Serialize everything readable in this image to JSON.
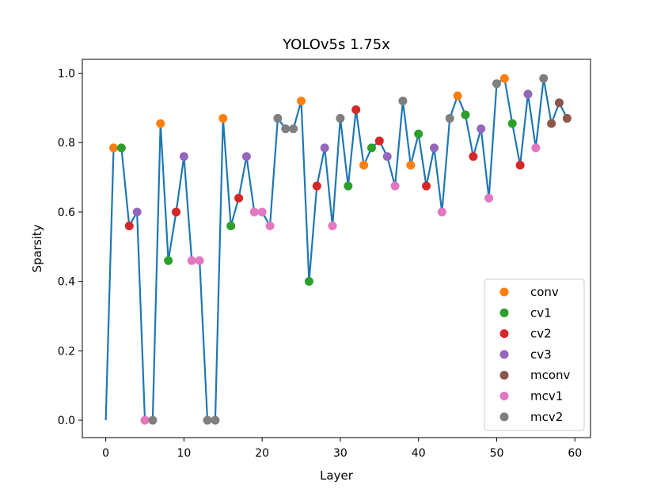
{
  "chart_data": {
    "type": "line",
    "title": "YOLOv5s 1.75x",
    "xlabel": "Layer",
    "ylabel": "Sparsity",
    "xlim": [
      -3,
      62
    ],
    "ylim": [
      -0.05,
      1.04
    ],
    "xticks": [
      0,
      10,
      20,
      30,
      40,
      50,
      60
    ],
    "yticks": [
      0.0,
      0.2,
      0.4,
      0.6,
      0.8,
      1.0
    ],
    "xtick_labels": [
      "0",
      "10",
      "20",
      "30",
      "40",
      "50",
      "60"
    ],
    "ytick_labels": [
      "0.0",
      "0.2",
      "0.4",
      "0.6",
      "0.8",
      "1.0"
    ],
    "grid": false,
    "legend_position": "lower-right",
    "line": {
      "color": "#1f77b4",
      "x": [
        0,
        1,
        2,
        3,
        4,
        5,
        6,
        7,
        8,
        9,
        10,
        11,
        12,
        13,
        14,
        15,
        16,
        17,
        18,
        19,
        20,
        21,
        22,
        23,
        24,
        25,
        26,
        27,
        28,
        29,
        30,
        31,
        32,
        33,
        34,
        35,
        36,
        37,
        38,
        39,
        40,
        41,
        42,
        43,
        44,
        45,
        46,
        47,
        48,
        49,
        50,
        51,
        52,
        53,
        54,
        55,
        56,
        57,
        58,
        59
      ],
      "y": [
        0.0,
        0.785,
        0.785,
        0.56,
        0.6,
        0.0,
        0.0,
        0.855,
        0.46,
        0.6,
        0.76,
        0.46,
        0.46,
        0.0,
        0.0,
        0.87,
        0.56,
        0.64,
        0.76,
        0.6,
        0.6,
        0.56,
        0.87,
        0.84,
        0.84,
        0.92,
        0.4,
        0.675,
        0.785,
        0.56,
        0.87,
        0.675,
        0.895,
        0.735,
        0.785,
        0.805,
        0.76,
        0.675,
        0.92,
        0.735,
        0.825,
        0.675,
        0.785,
        0.6,
        0.87,
        0.935,
        0.88,
        0.76,
        0.84,
        0.64,
        0.97,
        0.985,
        0.855,
        0.735,
        0.94,
        0.785,
        0.985,
        0.855,
        0.915,
        0.87
      ]
    },
    "series": [
      {
        "name": "conv",
        "color": "#ff7f0e",
        "x": [
          1,
          7,
          15,
          25,
          33,
          39,
          45,
          51
        ],
        "y": [
          0.785,
          0.855,
          0.87,
          0.92,
          0.735,
          0.735,
          0.935,
          0.985
        ]
      },
      {
        "name": "cv1",
        "color": "#2ca02c",
        "x": [
          2,
          8,
          16,
          26,
          31,
          34,
          40,
          46,
          52
        ],
        "y": [
          0.785,
          0.46,
          0.56,
          0.4,
          0.675,
          0.785,
          0.825,
          0.88,
          0.855
        ]
      },
      {
        "name": "cv2",
        "color": "#d62728",
        "x": [
          3,
          9,
          17,
          27,
          32,
          35,
          41,
          47,
          53
        ],
        "y": [
          0.56,
          0.6,
          0.64,
          0.675,
          0.895,
          0.805,
          0.675,
          0.76,
          0.735
        ]
      },
      {
        "name": "cv3",
        "color": "#9467bd",
        "x": [
          4,
          10,
          18,
          28,
          36,
          42,
          48,
          54
        ],
        "y": [
          0.6,
          0.76,
          0.76,
          0.785,
          0.76,
          0.785,
          0.84,
          0.94
        ]
      },
      {
        "name": "mconv",
        "color": "#8c564b",
        "x": [
          57,
          58,
          59
        ],
        "y": [
          0.855,
          0.915,
          0.87
        ]
      },
      {
        "name": "mcv1",
        "color": "#e377c2",
        "x": [
          5,
          11,
          12,
          19,
          20,
          21,
          29,
          37,
          43,
          49,
          55
        ],
        "y": [
          0.0,
          0.46,
          0.46,
          0.6,
          0.6,
          0.56,
          0.56,
          0.675,
          0.6,
          0.64,
          0.785
        ]
      },
      {
        "name": "mcv2",
        "color": "#7f7f7f",
        "x": [
          6,
          13,
          14,
          22,
          23,
          24,
          30,
          38,
          44,
          50,
          56
        ],
        "y": [
          0.0,
          0.0,
          0.0,
          0.87,
          0.84,
          0.84,
          0.87,
          0.92,
          0.87,
          0.97,
          0.985
        ]
      }
    ]
  }
}
